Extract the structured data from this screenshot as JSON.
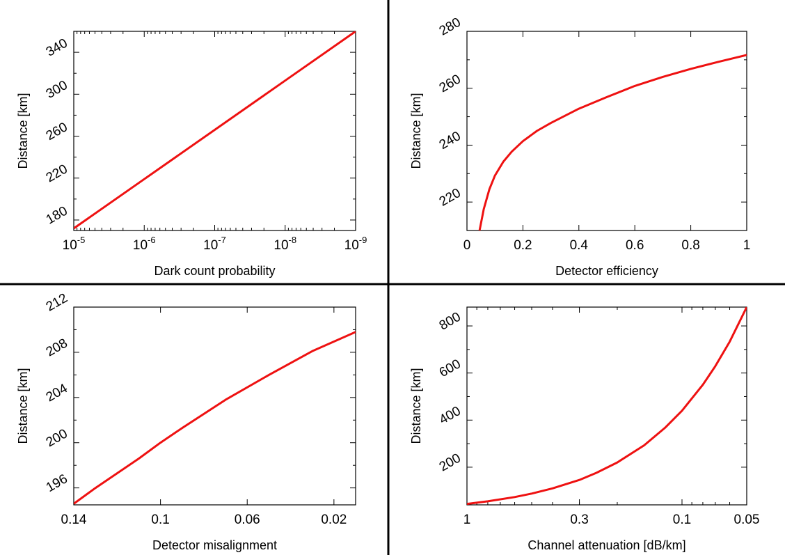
{
  "colors": {
    "curve": "#ee1111",
    "axes": "#000000",
    "divider": "#000000"
  },
  "chart_data": [
    {
      "type": "line",
      "xlabel": "Dark count probability",
      "ylabel": "Distance [km]",
      "xscale": "log",
      "xreversed": true,
      "xlim": [
        1e-05,
        1e-09
      ],
      "ylim": [
        170,
        360
      ],
      "xticks": [
        {
          "value": 1e-05,
          "base": "10",
          "exp": "-5"
        },
        {
          "value": 1e-06,
          "base": "10",
          "exp": "-6"
        },
        {
          "value": 1e-07,
          "base": "10",
          "exp": "-7"
        },
        {
          "value": 1e-08,
          "base": "10",
          "exp": "-8"
        },
        {
          "value": 1e-09,
          "base": "10",
          "exp": "-9"
        }
      ],
      "yticks": [
        {
          "value": 180,
          "label": "180"
        },
        {
          "value": 220,
          "label": "220"
        },
        {
          "value": 260,
          "label": "260"
        },
        {
          "value": 300,
          "label": "300"
        },
        {
          "value": 340,
          "label": "340"
        }
      ],
      "grid": false,
      "series": [
        {
          "x": [
            1e-05,
            1e-06,
            1e-07,
            1e-08,
            1e-09
          ],
          "y": [
            172,
            219,
            266,
            313,
            360
          ]
        }
      ]
    },
    {
      "type": "line",
      "xlabel": "Detector efficiency",
      "ylabel": "Distance [km]",
      "xscale": "linear",
      "xreversed": false,
      "xlim": [
        0,
        1
      ],
      "ylim": [
        210,
        280
      ],
      "xticks": [
        {
          "value": 0,
          "label": "0"
        },
        {
          "value": 0.2,
          "label": "0.2"
        },
        {
          "value": 0.4,
          "label": "0.4"
        },
        {
          "value": 0.6,
          "label": "0.6"
        },
        {
          "value": 0.8,
          "label": "0.8"
        },
        {
          "value": 1,
          "label": "1"
        }
      ],
      "yticks": [
        {
          "value": 220,
          "label": "220"
        },
        {
          "value": 240,
          "label": "240"
        },
        {
          "value": 260,
          "label": "260"
        },
        {
          "value": 280,
          "label": "280"
        }
      ],
      "grid": false,
      "series": [
        {
          "x": [
            0.045,
            0.06,
            0.08,
            0.1,
            0.13,
            0.16,
            0.2,
            0.25,
            0.3,
            0.4,
            0.5,
            0.6,
            0.7,
            0.8,
            0.9,
            1.0
          ],
          "y": [
            210,
            217.5,
            224.5,
            229.3,
            234.2,
            237.7,
            241.4,
            245.0,
            247.8,
            252.8,
            256.9,
            260.8,
            264.0,
            266.8,
            269.3,
            271.7
          ]
        }
      ]
    },
    {
      "type": "line",
      "xlabel": "Detector misalignment",
      "ylabel": "Distance [km]",
      "xscale": "linear",
      "xreversed": true,
      "xlim": [
        0.14,
        0.01
      ],
      "ylim": [
        194.5,
        212
      ],
      "xticks": [
        {
          "value": 0.14,
          "label": "0.14"
        },
        {
          "value": 0.1,
          "label": "0.1"
        },
        {
          "value": 0.06,
          "label": "0.06"
        },
        {
          "value": 0.02,
          "label": "0.02"
        }
      ],
      "yticks": [
        {
          "value": 196,
          "label": "196"
        },
        {
          "value": 200,
          "label": "200"
        },
        {
          "value": 204,
          "label": "204"
        },
        {
          "value": 208,
          "label": "208"
        },
        {
          "value": 212,
          "label": "212"
        }
      ],
      "grid": false,
      "series": [
        {
          "x": [
            0.14,
            0.13,
            0.11,
            0.1,
            0.09,
            0.07,
            0.05,
            0.03,
            0.01
          ],
          "y": [
            194.6,
            196.0,
            198.6,
            200.0,
            201.3,
            203.8,
            206.0,
            208.1,
            209.8
          ]
        }
      ]
    },
    {
      "type": "line",
      "xlabel": "Channel attenuation [dB/km]",
      "ylabel": "Distance [km]",
      "xscale": "log",
      "xreversed": true,
      "xlim": [
        1,
        0.05
      ],
      "ylim": [
        40,
        880
      ],
      "xticks": [
        {
          "value": 1,
          "label": "1"
        },
        {
          "value": 0.3,
          "label": "0.3"
        },
        {
          "value": 0.1,
          "label": "0.1"
        },
        {
          "value": 0.05,
          "label": "0.05"
        }
      ],
      "yticks": [
        {
          "value": 200,
          "label": "200"
        },
        {
          "value": 400,
          "label": "400"
        },
        {
          "value": 600,
          "label": "600"
        },
        {
          "value": 800,
          "label": "800"
        }
      ],
      "grid": false,
      "series": [
        {
          "x": [
            1,
            0.8,
            0.6,
            0.5,
            0.4,
            0.3,
            0.25,
            0.2,
            0.15,
            0.12,
            0.1,
            0.08,
            0.07,
            0.06,
            0.05
          ],
          "y": [
            44,
            55,
            73,
            88,
            110,
            146,
            176,
            220,
            293,
            367,
            440,
            550,
            629,
            733,
            880
          ]
        }
      ]
    }
  ]
}
